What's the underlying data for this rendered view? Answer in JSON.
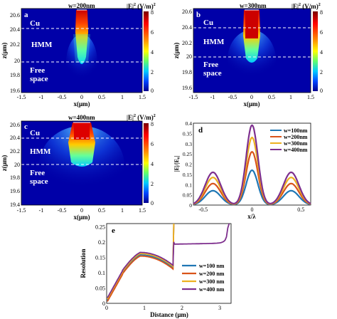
{
  "colorbar": {
    "title_base": "|E|",
    "title_sup": "2",
    "title_unit": "(V/m)",
    "title_unit_sup": "2",
    "ticks": [
      "8",
      "6",
      "4",
      "2",
      "0"
    ],
    "stops": [
      "#7a0000",
      "#ff0000",
      "#ff8800",
      "#ffff00",
      "#66ff66",
      "#00ccff",
      "#0044ff",
      "#00008f"
    ]
  },
  "map_panels": [
    {
      "letter": "a",
      "width_label": "w=200nm",
      "cu_label": "Cu",
      "hmm_label": "HMM",
      "free_label_1": "Free",
      "free_label_2": "space",
      "ylabel": "z(μm)",
      "xlabel": "x(μm)",
      "yticks": [
        "20.6",
        "20.4",
        "20.2",
        "20",
        "19.8",
        "19.6"
      ],
      "xticks": [
        "-1.5",
        "-1",
        "-0.5",
        "0",
        "0.5",
        "1",
        "1.5"
      ]
    },
    {
      "letter": "b",
      "width_label": "w=300nm",
      "cu_label": "Cu",
      "hmm_label": "HMM",
      "free_label_1": "Free",
      "free_label_2": "space",
      "ylabel": "z(μm)",
      "xlabel": "x(μm)",
      "yticks": [
        "20.6",
        "20.4",
        "20.2",
        "20",
        "19.8",
        "19.6"
      ],
      "xticks": [
        "-1.5",
        "-1",
        "-0.5",
        "0",
        "0.5",
        "1",
        "1.5"
      ]
    },
    {
      "letter": "c",
      "width_label": "w=400nm",
      "cu_label": "Cu",
      "hmm_label": "HMM",
      "free_label_1": "Free",
      "free_label_2": "space",
      "ylabel": "z(μm)",
      "xlabel": "x(μm)",
      "yticks": [
        "20.6",
        "20.4",
        "20.2",
        "20",
        "19.8",
        "19.6",
        "19.4"
      ],
      "xticks": [
        "-1.5",
        "-1",
        "-0.5",
        "0",
        "0.5",
        "1",
        "1.5"
      ]
    }
  ],
  "chart_data": [
    {
      "type": "line",
      "panel": "d",
      "xlabel": "x/λ",
      "ylabel": "|E|/|E₀|",
      "xlim": [
        -0.6,
        0.6
      ],
      "ylim": [
        0,
        0.4
      ],
      "xticks": [
        "-0.5",
        "0",
        "0.5"
      ],
      "yticks": [
        "0.4",
        "0.35",
        "0.3",
        "0.25",
        "0.2",
        "0.15",
        "0.1",
        "0.05",
        "0"
      ],
      "legend_position": "top-right",
      "series": [
        {
          "name": "w=100nm",
          "color": "#1f77b4",
          "peak": 0.17,
          "side_peak": 0.07
        },
        {
          "name": "w=200nm",
          "color": "#d9541a",
          "peak": 0.26,
          "side_peak": 0.105
        },
        {
          "name": "w=300nm",
          "color": "#edb120",
          "peak": 0.33,
          "side_peak": 0.135
        },
        {
          "name": "w=400nm",
          "color": "#7e2f8e",
          "peak": 0.39,
          "side_peak": 0.16
        }
      ]
    },
    {
      "type": "line",
      "panel": "e",
      "xlabel": "Distance (μm)",
      "ylabel": "Resolution",
      "xlim": [
        0,
        3.3
      ],
      "ylim": [
        0,
        0.26
      ],
      "xticks": [
        "0",
        "1",
        "2",
        "3"
      ],
      "yticks": [
        "0.25",
        "0.2",
        "0.15",
        "0.1",
        "0.05",
        "0"
      ],
      "legend_position": "bottom-right",
      "series": [
        {
          "name": "w=100 nm",
          "color": "#1f77b4"
        },
        {
          "name": "w=200 nm",
          "color": "#d9541a"
        },
        {
          "name": "w=300 nm",
          "color": "#edb120"
        },
        {
          "name": "w=400 nm",
          "color": "#7e2f8e"
        }
      ]
    }
  ]
}
